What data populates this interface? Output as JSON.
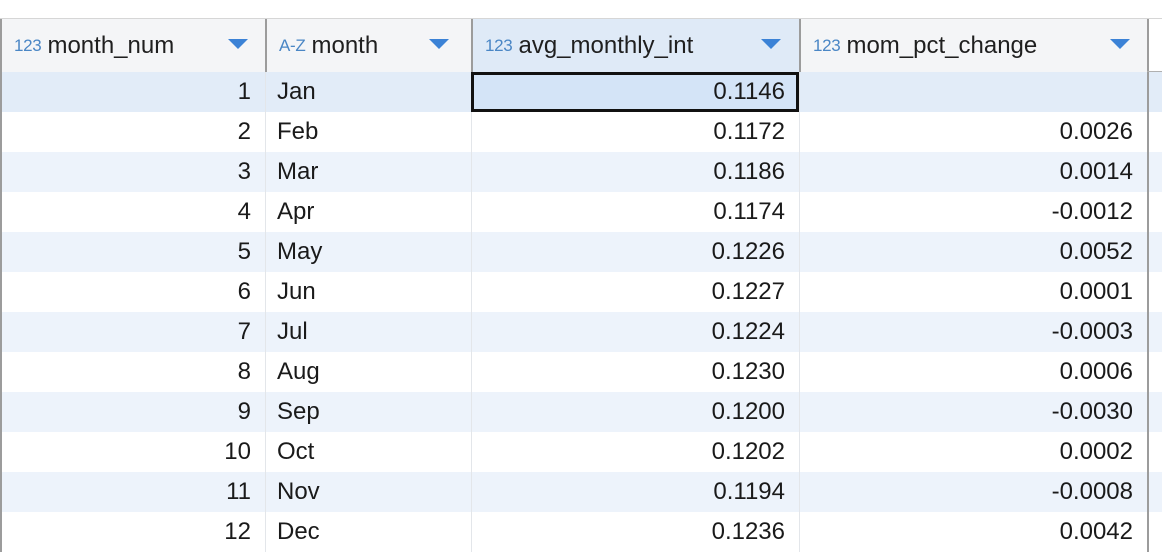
{
  "topbar": {
    "fragments": []
  },
  "columns": [
    {
      "type_icon": "123",
      "name": "month_num"
    },
    {
      "type_icon": "A-Z",
      "name": "month"
    },
    {
      "type_icon": "123",
      "name": "avg_monthly_int"
    },
    {
      "type_icon": "123",
      "name": "mom_pct_change"
    }
  ],
  "rows": [
    {
      "month_num": "1",
      "month": "Jan",
      "avg_monthly_int": "0.1146",
      "mom_pct_change": ""
    },
    {
      "month_num": "2",
      "month": "Feb",
      "avg_monthly_int": "0.1172",
      "mom_pct_change": "0.0026"
    },
    {
      "month_num": "3",
      "month": "Mar",
      "avg_monthly_int": "0.1186",
      "mom_pct_change": "0.0014"
    },
    {
      "month_num": "4",
      "month": "Apr",
      "avg_monthly_int": "0.1174",
      "mom_pct_change": "-0.0012"
    },
    {
      "month_num": "5",
      "month": "May",
      "avg_monthly_int": "0.1226",
      "mom_pct_change": "0.0052"
    },
    {
      "month_num": "6",
      "month": "Jun",
      "avg_monthly_int": "0.1227",
      "mom_pct_change": "0.0001"
    },
    {
      "month_num": "7",
      "month": "Jul",
      "avg_monthly_int": "0.1224",
      "mom_pct_change": "-0.0003"
    },
    {
      "month_num": "8",
      "month": "Aug",
      "avg_monthly_int": "0.1230",
      "mom_pct_change": "0.0006"
    },
    {
      "month_num": "9",
      "month": "Sep",
      "avg_monthly_int": "0.1200",
      "mom_pct_change": "-0.0030"
    },
    {
      "month_num": "10",
      "month": "Oct",
      "avg_monthly_int": "0.1202",
      "mom_pct_change": "0.0002"
    },
    {
      "month_num": "11",
      "month": "Nov",
      "avg_monthly_int": "0.1194",
      "mom_pct_change": "-0.0008"
    },
    {
      "month_num": "12",
      "month": "Dec",
      "avg_monthly_int": "0.1236",
      "mom_pct_change": "0.0042"
    }
  ],
  "colors": {
    "accent": "#3b82d6",
    "type_icon": "#4a86c5",
    "row_alt": "#edf3fb",
    "selected_header": "#dfeaf7"
  },
  "icons": {
    "sort": "chevron-down-icon"
  }
}
